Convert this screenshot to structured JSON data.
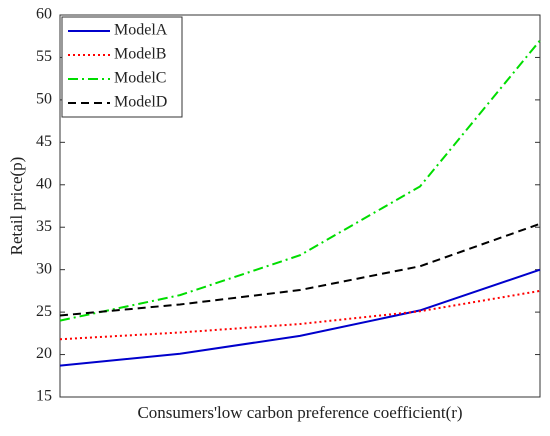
{
  "chart_data": {
    "type": "line",
    "xlabel": "Consumers'low carbon preference coefficient(r)",
    "ylabel": "Retail price(p)",
    "categories": [
      null,
      null,
      null,
      null,
      null
    ],
    "series": [
      {
        "name": "ModelA",
        "color": "#0000cc",
        "style": "solid",
        "values": [
          18.7,
          20.1,
          22.2,
          25.2,
          30.0
        ]
      },
      {
        "name": "ModelB",
        "color": "#ff0000",
        "style": "dotted",
        "values": [
          21.8,
          22.6,
          23.6,
          25.1,
          27.5
        ]
      },
      {
        "name": "ModelC",
        "color": "#00dd00",
        "style": "dashdot",
        "values": [
          24.0,
          27.0,
          31.7,
          39.8,
          57.0
        ]
      },
      {
        "name": "ModelD",
        "color": "#000000",
        "style": "dashed",
        "values": [
          24.6,
          25.9,
          27.6,
          30.4,
          35.4
        ]
      }
    ],
    "ylim": [
      15,
      60
    ],
    "yticks": [
      15,
      20,
      25,
      30,
      35,
      40,
      45,
      50,
      55,
      60
    ],
    "legend": "upper left"
  }
}
